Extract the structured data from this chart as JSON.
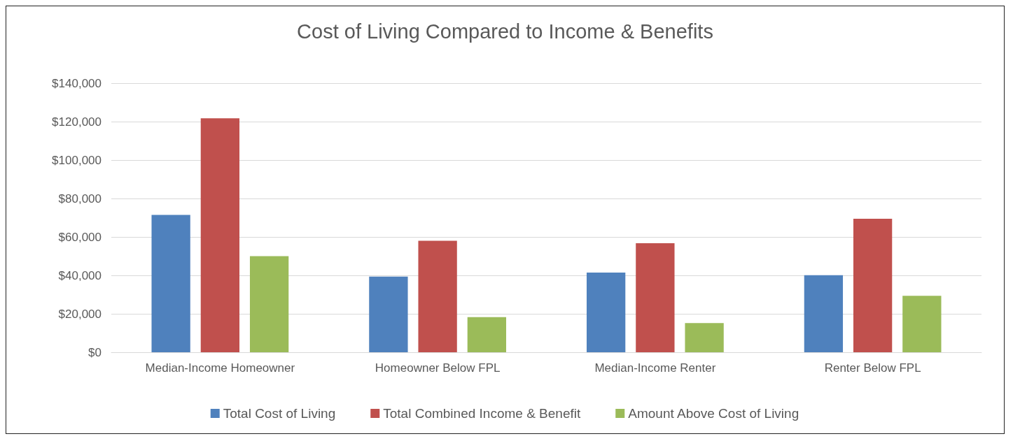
{
  "chart_data": {
    "type": "bar",
    "title": "Cost of Living Compared to Income & Benefits",
    "categories": [
      "Median-Income Homeowner",
      "Homeowner Below FPL",
      "Median-Income Renter",
      "Renter Below FPL"
    ],
    "series": [
      {
        "name": "Total Cost of Living",
        "color": "#4f81bd",
        "values": [
          71500,
          39400,
          41500,
          40100
        ]
      },
      {
        "name": "Total Combined Income & Benefit",
        "color": "#c0504d",
        "values": [
          121700,
          58000,
          56700,
          69500
        ]
      },
      {
        "name": "Amount Above Cost of Living",
        "color": "#9bbb59",
        "values": [
          50000,
          18300,
          15200,
          29400
        ]
      }
    ],
    "ylim": [
      0,
      140000
    ],
    "yticks": [
      {
        "value": 0,
        "label": "$0"
      },
      {
        "value": 20000,
        "label": "$20,000"
      },
      {
        "value": 40000,
        "label": "$40,000"
      },
      {
        "value": 60000,
        "label": "$60,000"
      },
      {
        "value": 80000,
        "label": "$80,000"
      },
      {
        "value": 100000,
        "label": "$100,000"
      },
      {
        "value": 120000,
        "label": "$120,000"
      },
      {
        "value": 140000,
        "label": "$140,000"
      }
    ],
    "grid": "y",
    "legend": "bottom"
  }
}
